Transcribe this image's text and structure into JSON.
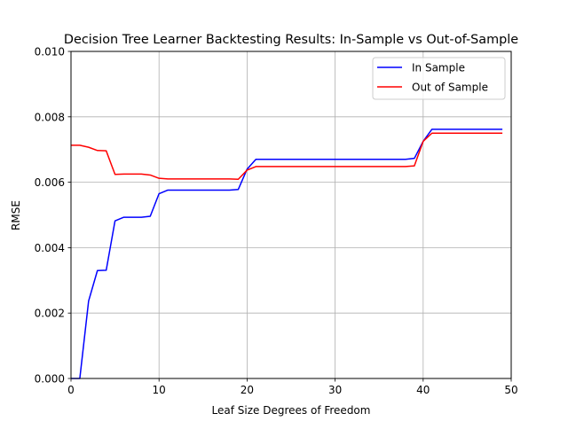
{
  "chart_data": {
    "type": "line",
    "title": "Decision Tree Learner Backtesting Results: In-Sample vs Out-of-Sample",
    "xlabel": "Leaf Size Degrees of Freedom",
    "ylabel": "RMSE",
    "xlim": [
      0,
      50
    ],
    "ylim": [
      0,
      0.01
    ],
    "xticks": [
      0,
      10,
      20,
      30,
      40,
      50
    ],
    "xtick_labels": [
      "0",
      "10",
      "20",
      "30",
      "40",
      "50"
    ],
    "yticks": [
      0,
      0.002,
      0.004,
      0.006,
      0.008,
      0.01
    ],
    "ytick_labels": [
      "0.000",
      "0.002",
      "0.004",
      "0.006",
      "0.008",
      "0.010"
    ],
    "grid": true,
    "legend_position": "top-right",
    "x": [
      0,
      1,
      2,
      3,
      4,
      5,
      6,
      7,
      8,
      9,
      10,
      11,
      12,
      13,
      14,
      15,
      16,
      17,
      18,
      19,
      20,
      21,
      22,
      23,
      24,
      25,
      26,
      27,
      28,
      29,
      30,
      31,
      32,
      33,
      34,
      35,
      36,
      37,
      38,
      39,
      40,
      41,
      42,
      43,
      44,
      45,
      46,
      47,
      48,
      49
    ],
    "series": [
      {
        "name": "In Sample",
        "color": "#0000ff",
        "values": [
          0,
          0,
          0.00237,
          0.0033,
          0.00331,
          0.00482,
          0.00493,
          0.00493,
          0.00493,
          0.00496,
          0.00565,
          0.00576,
          0.00576,
          0.00576,
          0.00576,
          0.00576,
          0.00576,
          0.00576,
          0.00576,
          0.00578,
          0.0064,
          0.0067,
          0.0067,
          0.0067,
          0.0067,
          0.0067,
          0.0067,
          0.0067,
          0.0067,
          0.0067,
          0.0067,
          0.0067,
          0.0067,
          0.0067,
          0.0067,
          0.0067,
          0.0067,
          0.0067,
          0.0067,
          0.00673,
          0.00725,
          0.00762,
          0.00762,
          0.00762,
          0.00762,
          0.00762,
          0.00762,
          0.00762,
          0.00762,
          0.00762
        ]
      },
      {
        "name": "Out of Sample",
        "color": "#ff0000",
        "values": [
          0.00713,
          0.00713,
          0.00707,
          0.00697,
          0.00696,
          0.00624,
          0.00625,
          0.00625,
          0.00625,
          0.00622,
          0.00612,
          0.0061,
          0.0061,
          0.0061,
          0.0061,
          0.0061,
          0.0061,
          0.0061,
          0.0061,
          0.00609,
          0.00637,
          0.00648,
          0.00648,
          0.00648,
          0.00648,
          0.00648,
          0.00648,
          0.00648,
          0.00648,
          0.00648,
          0.00648,
          0.00648,
          0.00648,
          0.00648,
          0.00648,
          0.00648,
          0.00648,
          0.00648,
          0.00648,
          0.0065,
          0.00725,
          0.0075,
          0.0075,
          0.0075,
          0.0075,
          0.0075,
          0.0075,
          0.0075,
          0.0075,
          0.0075
        ]
      }
    ]
  }
}
